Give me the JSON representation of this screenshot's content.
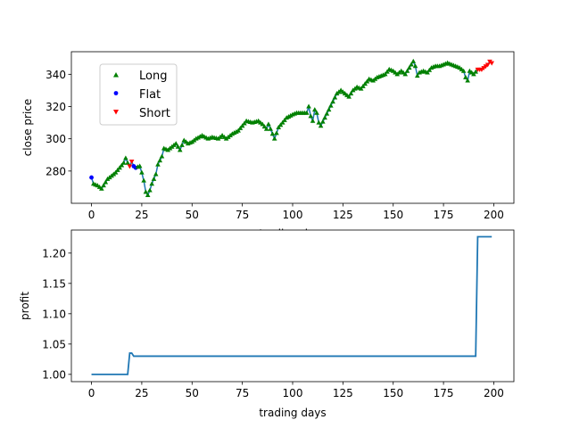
{
  "chart_data": [
    {
      "type": "line",
      "xlabel": "trading days",
      "ylabel": "close price",
      "xlim": [
        -10,
        210
      ],
      "ylim": [
        260,
        354
      ],
      "xticks": [
        0,
        25,
        50,
        75,
        100,
        125,
        150,
        175,
        200
      ],
      "yticks": [
        280,
        300,
        320,
        340
      ],
      "grid": false,
      "legend_position": "upper-left",
      "legend": [
        {
          "label": "Long",
          "marker": "triangle-up",
          "color": "#008000"
        },
        {
          "label": "Flat",
          "marker": "circle",
          "color": "#0000ff"
        },
        {
          "label": "Short",
          "marker": "triangle-down",
          "color": "#ff0000"
        }
      ],
      "line_color": "#1f77b4",
      "price_keypoints": [
        [
          0,
          276
        ],
        [
          1,
          272
        ],
        [
          3,
          271
        ],
        [
          5,
          269
        ],
        [
          6,
          271
        ],
        [
          8,
          275
        ],
        [
          10,
          277
        ],
        [
          12,
          279
        ],
        [
          14,
          282
        ],
        [
          16,
          285
        ],
        [
          17,
          288
        ],
        [
          18,
          285
        ],
        [
          19,
          283
        ],
        [
          20,
          286
        ],
        [
          21,
          283
        ],
        [
          22,
          282
        ],
        [
          24,
          283
        ],
        [
          25,
          279
        ],
        [
          26,
          274
        ],
        [
          27,
          267
        ],
        [
          28,
          265
        ],
        [
          29,
          268
        ],
        [
          30,
          272
        ],
        [
          32,
          278
        ],
        [
          33,
          284
        ],
        [
          35,
          289
        ],
        [
          36,
          294
        ],
        [
          38,
          293
        ],
        [
          40,
          295
        ],
        [
          42,
          297
        ],
        [
          44,
          293
        ],
        [
          46,
          299
        ],
        [
          48,
          297
        ],
        [
          50,
          298
        ],
        [
          52,
          300
        ],
        [
          55,
          302
        ],
        [
          58,
          300
        ],
        [
          60,
          301
        ],
        [
          63,
          300
        ],
        [
          65,
          302
        ],
        [
          67,
          300
        ],
        [
          70,
          303
        ],
        [
          73,
          305
        ],
        [
          75,
          308
        ],
        [
          77,
          311
        ],
        [
          80,
          310
        ],
        [
          83,
          311
        ],
        [
          85,
          309
        ],
        [
          87,
          306
        ],
        [
          88,
          309
        ],
        [
          90,
          303
        ],
        [
          91,
          300
        ],
        [
          93,
          307
        ],
        [
          95,
          310
        ],
        [
          97,
          313
        ],
        [
          100,
          315
        ],
        [
          102,
          316
        ],
        [
          105,
          316
        ],
        [
          107,
          316
        ],
        [
          108,
          320
        ],
        [
          109,
          314
        ],
        [
          110,
          311
        ],
        [
          111,
          318
        ],
        [
          112,
          316
        ],
        [
          113,
          310
        ],
        [
          114,
          308
        ],
        [
          116,
          313
        ],
        [
          118,
          318
        ],
        [
          120,
          323
        ],
        [
          122,
          328
        ],
        [
          124,
          330
        ],
        [
          126,
          328
        ],
        [
          128,
          326
        ],
        [
          130,
          330
        ],
        [
          132,
          332
        ],
        [
          134,
          331
        ],
        [
          136,
          334
        ],
        [
          138,
          337
        ],
        [
          140,
          336
        ],
        [
          142,
          338
        ],
        [
          144,
          339
        ],
        [
          146,
          340
        ],
        [
          148,
          343
        ],
        [
          150,
          342
        ],
        [
          152,
          340
        ],
        [
          154,
          342
        ],
        [
          156,
          340
        ],
        [
          158,
          344
        ],
        [
          159,
          346
        ],
        [
          160,
          348
        ],
        [
          161,
          345
        ],
        [
          162,
          339
        ],
        [
          163,
          341
        ],
        [
          165,
          342
        ],
        [
          167,
          341
        ],
        [
          169,
          344
        ],
        [
          171,
          345
        ],
        [
          173,
          345
        ],
        [
          175,
          346
        ],
        [
          177,
          347
        ],
        [
          179,
          346
        ],
        [
          181,
          345
        ],
        [
          183,
          344
        ],
        [
          185,
          342
        ],
        [
          186,
          338
        ],
        [
          187,
          336
        ],
        [
          188,
          342
        ],
        [
          190,
          340
        ],
        [
          192,
          343
        ],
        [
          194,
          343
        ],
        [
          196,
          345
        ],
        [
          197,
          346
        ],
        [
          198,
          348
        ],
        [
          199,
          347
        ],
        [
          200,
          346
        ]
      ],
      "positions": [
        {
          "label": "Flat",
          "from": 0,
          "to": 0
        },
        {
          "label": "Long",
          "from": 1,
          "to": 18
        },
        {
          "label": "Short",
          "from": 19,
          "to": 20
        },
        {
          "label": "Flat",
          "from": 21,
          "to": 22
        },
        {
          "label": "Long",
          "from": 23,
          "to": 191
        },
        {
          "label": "Short",
          "from": 192,
          "to": 199
        }
      ]
    },
    {
      "type": "line",
      "xlabel": "trading days",
      "ylabel": "profit",
      "xlim": [
        -10,
        210
      ],
      "ylim": [
        0.988,
        1.238
      ],
      "xticks": [
        0,
        25,
        50,
        75,
        100,
        125,
        150,
        175,
        200
      ],
      "yticks": [
        "1.00",
        "1.05",
        "1.10",
        "1.15",
        "1.20"
      ],
      "grid": false,
      "line_color": "#1f77b4",
      "x": [
        0,
        18,
        19,
        20,
        21,
        22,
        190,
        191,
        192,
        199
      ],
      "values": [
        1.0,
        1.0,
        1.035,
        1.035,
        1.03,
        1.03,
        1.03,
        1.03,
        1.227,
        1.227
      ]
    }
  ]
}
